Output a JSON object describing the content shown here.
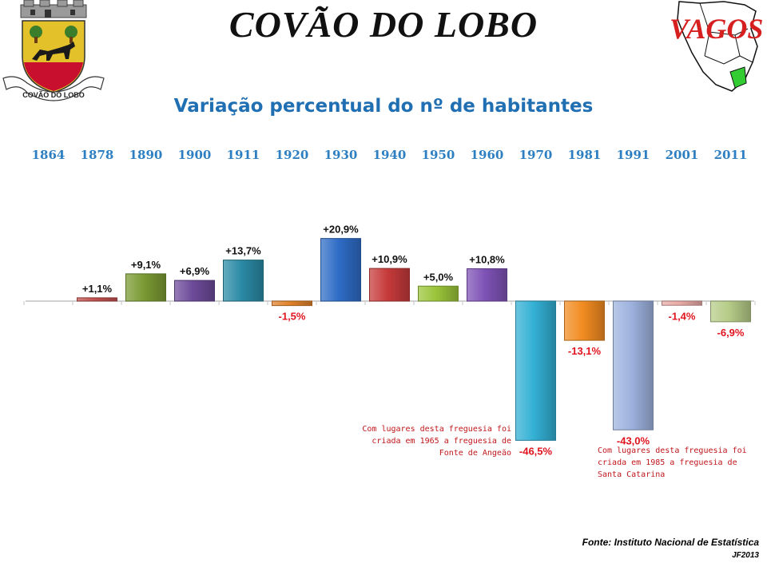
{
  "header": {
    "title": "COVÃO DO LOBO",
    "coat_of_arms_text": "COVÃO DO LOBO",
    "map_label": "VAGOS"
  },
  "colors": {
    "title_blue": "#1f6fb2",
    "year_blue": "#2d7fc1",
    "negative_red": "#e0141e",
    "note_red": "#c0161b"
  },
  "chart_data": {
    "type": "bar",
    "title": "Variação percentual do nº de habitantes",
    "categories": [
      "1864",
      "1878",
      "1890",
      "1900",
      "1911",
      "1920",
      "1930",
      "1940",
      "1950",
      "1960",
      "1970",
      "1981",
      "1991",
      "2001",
      "2011"
    ],
    "values": [
      null,
      1.1,
      9.1,
      6.9,
      13.7,
      -1.5,
      20.9,
      10.9,
      5.0,
      10.8,
      -46.5,
      -13.1,
      -43.0,
      -1.4,
      -6.9
    ],
    "labels": [
      "",
      "+1,1%",
      "+9,1%",
      "+6,9%",
      "+13,7%",
      "-1,5%",
      "+20,9%",
      "+10,9%",
      "+5,0%",
      "+10,8%",
      "-46,5%",
      "-13,1%",
      "-43,0%",
      "-1,4%",
      "-6,9%"
    ],
    "bar_colors": [
      "#ffffff",
      "#c0504d",
      "#7a9a32",
      "#6c4a99",
      "#2a8aa5",
      "#e0822a",
      "#2e6cc6",
      "#c63a3a",
      "#9bc43a",
      "#7e52b6",
      "#33b0d4",
      "#f28c21",
      "#9db2de",
      "#e8aaa6",
      "#b6cc88"
    ],
    "xlabel": "",
    "ylabel": "",
    "grid": false,
    "legend": "none"
  },
  "notes": [
    "Com lugares desta freguesia foi\ncriada em 1965 a freguesia de\nFonte de Angeão",
    "Com lugares desta freguesia foi\ncriada em 1985 a freguesia de\nSanta Catarina"
  ],
  "footer": {
    "source": "Fonte: Instituto Nacional de Estatística",
    "author": "JF2013"
  }
}
